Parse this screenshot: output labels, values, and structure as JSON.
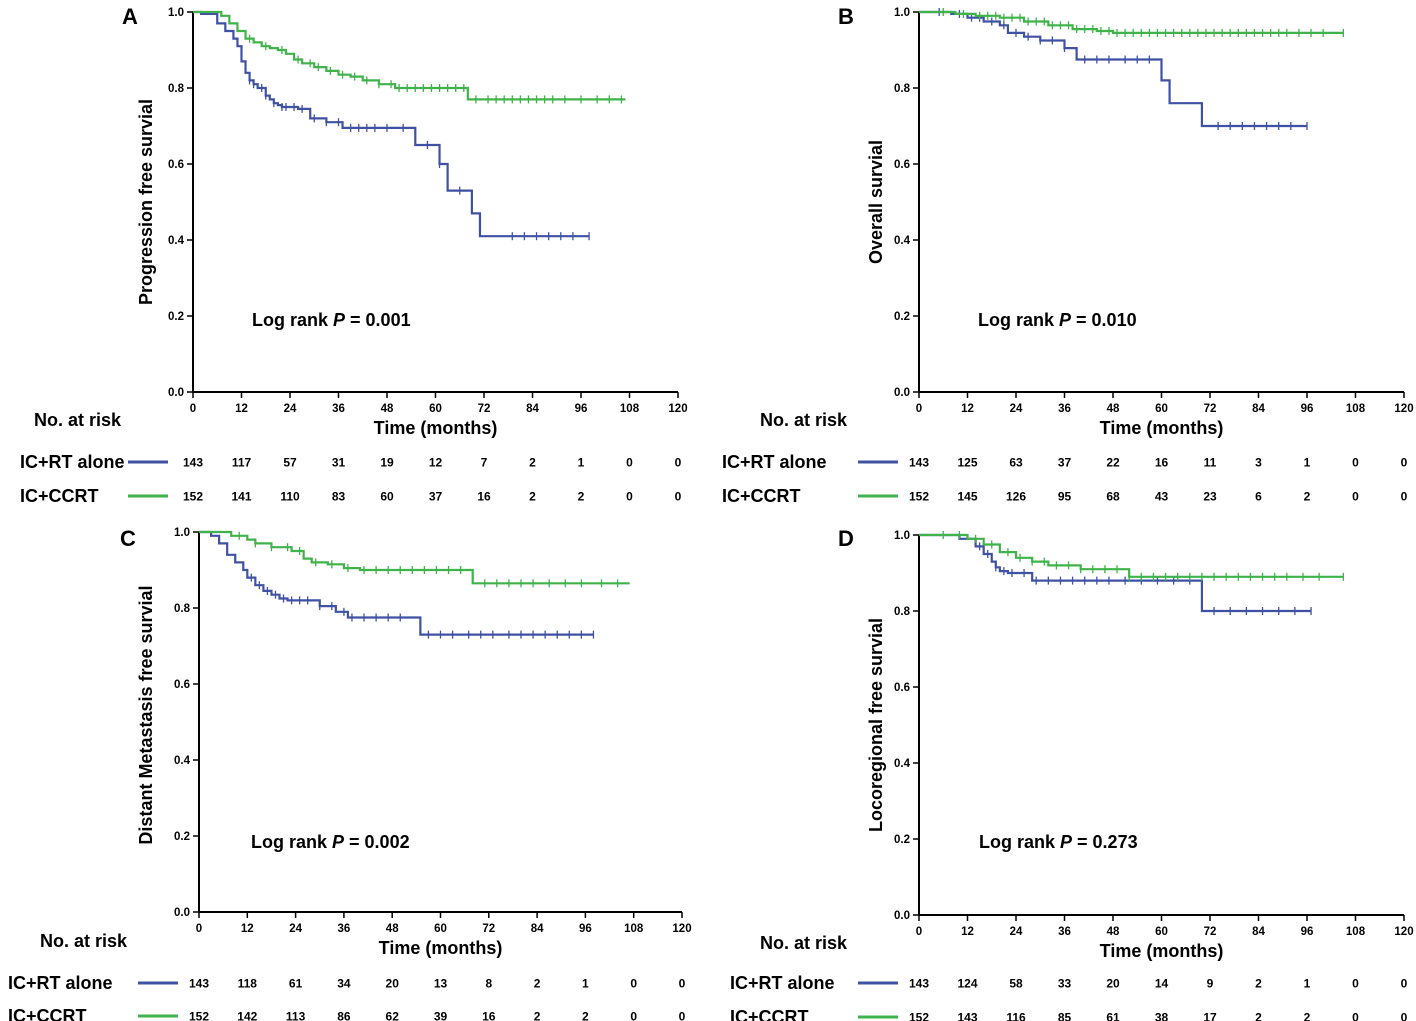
{
  "colors": {
    "rt_alone": "#3f51a3",
    "ccrt": "#3fb34a",
    "axis": "#000000"
  },
  "common": {
    "xlabel": "Time (months)",
    "risk_title": "No. at risk",
    "series_names": [
      "IC+RT alone",
      "IC+CCRT"
    ],
    "x_ticks": [
      "0",
      "12",
      "24",
      "36",
      "48",
      "60",
      "72",
      "84",
      "96",
      "108",
      "120"
    ],
    "y_ticks": [
      "0.0",
      "0.2",
      "0.4",
      "0.6",
      "0.8",
      "1.0"
    ],
    "logrank_prefix": "Log rank ",
    "p_symbol": "P",
    "p_eq": " = "
  },
  "chart_data": [
    {
      "panel": "A",
      "type": "line",
      "ylabel": "Progression free survial",
      "p_value": "0.001",
      "xlim": [
        0,
        120
      ],
      "ylim": [
        0,
        1
      ],
      "series": [
        {
          "name": "IC+RT alone",
          "x": [
            0,
            2,
            6,
            8,
            10,
            11,
            12,
            13,
            14,
            15,
            16,
            18,
            19,
            20,
            21,
            22,
            26,
            29,
            33,
            37,
            55,
            58,
            61,
            63,
            69,
            71,
            98
          ],
          "y": [
            1.0,
            0.995,
            0.97,
            0.95,
            0.93,
            0.91,
            0.87,
            0.84,
            0.82,
            0.81,
            0.8,
            0.78,
            0.77,
            0.76,
            0.755,
            0.75,
            0.745,
            0.72,
            0.71,
            0.695,
            0.65,
            0.65,
            0.6,
            0.53,
            0.47,
            0.41,
            0.41
          ],
          "censor_x": [
            14,
            15,
            17,
            18,
            20,
            22,
            23,
            25,
            27,
            30,
            33,
            36,
            39,
            41,
            43,
            45,
            48,
            52,
            58,
            61,
            66,
            79,
            82,
            85,
            88,
            91,
            94,
            98
          ]
        },
        {
          "name": "IC+CCRT",
          "x": [
            0,
            7,
            9,
            11,
            13,
            15,
            17,
            19,
            21,
            23,
            25,
            27,
            30,
            33,
            36,
            39,
            42,
            46,
            50,
            53,
            68,
            107
          ],
          "y": [
            1.0,
            0.99,
            0.97,
            0.95,
            0.93,
            0.92,
            0.91,
            0.905,
            0.9,
            0.89,
            0.875,
            0.865,
            0.855,
            0.845,
            0.835,
            0.83,
            0.82,
            0.81,
            0.8,
            0.8,
            0.77,
            0.77
          ],
          "censor_x": [
            14,
            18,
            22,
            26,
            29,
            31,
            34,
            37,
            40,
            43,
            46,
            49,
            51,
            53,
            55,
            57,
            59,
            61,
            63,
            65,
            67,
            70,
            73,
            75,
            77,
            79,
            81,
            83,
            85,
            87,
            89,
            92,
            96,
            100,
            103,
            106
          ]
        }
      ],
      "risk": {
        "IC+RT alone": [
          143,
          117,
          57,
          31,
          19,
          12,
          7,
          2,
          1,
          0,
          0
        ],
        "IC+CCRT": [
          152,
          141,
          110,
          83,
          60,
          37,
          16,
          2,
          2,
          0,
          0
        ]
      }
    },
    {
      "panel": "B",
      "type": "line",
      "ylabel": "Overall survial",
      "p_value": "0.010",
      "xlim": [
        0,
        120
      ],
      "ylim": [
        0,
        1
      ],
      "series": [
        {
          "name": "IC+RT alone",
          "x": [
            0,
            8,
            12,
            16,
            20,
            22,
            26,
            30,
            36,
            39,
            58,
            60,
            62,
            69,
            70,
            96
          ],
          "y": [
            1.0,
            0.995,
            0.985,
            0.975,
            0.965,
            0.945,
            0.935,
            0.925,
            0.905,
            0.875,
            0.875,
            0.82,
            0.76,
            0.76,
            0.7,
            0.7
          ],
          "censor_x": [
            5,
            10,
            13,
            15,
            18,
            21,
            24,
            27,
            30,
            33,
            36,
            41,
            44,
            47,
            51,
            54,
            57,
            74,
            77,
            80,
            83,
            86,
            89,
            92,
            96
          ]
        },
        {
          "name": "IC+CCRT",
          "x": [
            0,
            9,
            14,
            20,
            26,
            32,
            38,
            44,
            48,
            105
          ],
          "y": [
            1.0,
            0.995,
            0.99,
            0.985,
            0.975,
            0.965,
            0.955,
            0.95,
            0.945,
            0.945
          ],
          "censor_x": [
            6,
            11,
            15,
            17,
            19,
            21,
            23,
            25,
            27,
            29,
            31,
            33,
            35,
            37,
            39,
            41,
            43,
            45,
            47,
            49,
            51,
            53,
            55,
            57,
            59,
            61,
            63,
            65,
            67,
            69,
            71,
            73,
            75,
            77,
            79,
            81,
            83,
            85,
            87,
            89,
            91,
            94,
            97,
            100,
            105
          ]
        }
      ],
      "risk": {
        "IC+RT alone": [
          143,
          125,
          63,
          37,
          22,
          16,
          11,
          3,
          1,
          0,
          0
        ],
        "IC+CCRT": [
          152,
          145,
          126,
          95,
          68,
          43,
          23,
          6,
          2,
          0,
          0
        ]
      }
    },
    {
      "panel": "C",
      "type": "line",
      "ylabel": "Distant Metastasis free survial",
      "p_value": "0.002",
      "xlim": [
        0,
        120
      ],
      "ylim": [
        0,
        1
      ],
      "series": [
        {
          "name": "IC+RT alone",
          "x": [
            0,
            3,
            5,
            7,
            9,
            11,
            12,
            14,
            16,
            18,
            20,
            22,
            25,
            30,
            34,
            37,
            54,
            55,
            98
          ],
          "y": [
            1.0,
            0.99,
            0.97,
            0.94,
            0.92,
            0.9,
            0.88,
            0.86,
            0.845,
            0.835,
            0.825,
            0.82,
            0.82,
            0.805,
            0.79,
            0.775,
            0.775,
            0.73,
            0.73
          ],
          "censor_x": [
            13,
            15,
            17,
            19,
            21,
            23,
            25,
            27,
            30,
            33,
            36,
            38,
            41,
            44,
            47,
            50,
            57,
            60,
            63,
            67,
            70,
            73,
            77,
            80,
            83,
            86,
            89,
            92,
            95,
            98
          ]
        },
        {
          "name": "IC+CCRT",
          "x": [
            0,
            8,
            12,
            14,
            18,
            23,
            26,
            28,
            32,
            36,
            40,
            68,
            107
          ],
          "y": [
            1.0,
            0.99,
            0.98,
            0.97,
            0.96,
            0.95,
            0.93,
            0.92,
            0.915,
            0.905,
            0.9,
            0.865,
            0.865
          ],
          "censor_x": [
            10,
            14,
            18,
            22,
            25,
            29,
            33,
            37,
            41,
            44,
            47,
            50,
            53,
            56,
            59,
            62,
            65,
            71,
            74,
            77,
            80,
            83,
            87,
            91,
            95,
            100,
            104
          ]
        }
      ],
      "risk": {
        "IC+RT alone": [
          143,
          118,
          61,
          34,
          20,
          13,
          8,
          2,
          1,
          0,
          0
        ],
        "IC+CCRT": [
          152,
          142,
          113,
          86,
          62,
          39,
          16,
          2,
          2,
          0,
          0
        ]
      }
    },
    {
      "panel": "D",
      "type": "line",
      "ylabel": "Locoregional free survial",
      "p_value": "0.273",
      "xlim": [
        0,
        120
      ],
      "ylim": [
        0,
        1
      ],
      "series": [
        {
          "name": "IC+RT alone",
          "x": [
            0,
            10,
            14,
            16,
            18,
            19,
            20,
            22,
            28,
            70,
            97
          ],
          "y": [
            1.0,
            0.99,
            0.97,
            0.95,
            0.93,
            0.915,
            0.905,
            0.9,
            0.88,
            0.8,
            0.8
          ],
          "censor_x": [
            15,
            17,
            19,
            21,
            23,
            26,
            29,
            32,
            35,
            38,
            41,
            44,
            47,
            51,
            55,
            59,
            63,
            67,
            73,
            77,
            81,
            85,
            89,
            93,
            97
          ]
        },
        {
          "name": "IC+CCRT",
          "x": [
            0,
            12,
            16,
            20,
            24,
            28,
            32,
            40,
            52,
            105
          ],
          "y": [
            1.0,
            0.99,
            0.975,
            0.955,
            0.94,
            0.93,
            0.92,
            0.91,
            0.89,
            0.89
          ],
          "censor_x": [
            6,
            10,
            14,
            18,
            22,
            25,
            28,
            31,
            34,
            37,
            40,
            43,
            46,
            49,
            52,
            55,
            58,
            61,
            64,
            67,
            70,
            73,
            76,
            79,
            82,
            85,
            88,
            91,
            95,
            99,
            105
          ]
        }
      ],
      "risk": {
        "IC+RT alone": [
          143,
          124,
          58,
          33,
          20,
          14,
          9,
          2,
          1,
          0,
          0
        ],
        "IC+CCRT": [
          152,
          143,
          116,
          85,
          61,
          38,
          17,
          2,
          2,
          0,
          0
        ]
      }
    }
  ]
}
